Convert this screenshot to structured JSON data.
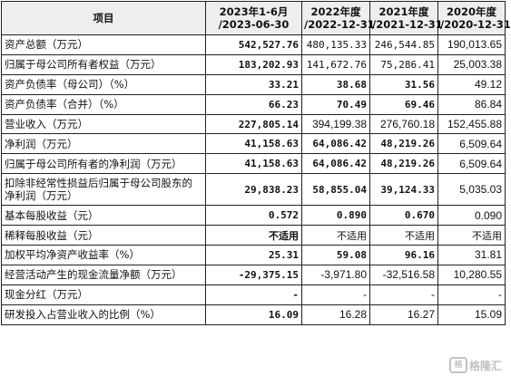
{
  "header": {
    "item": "项目",
    "col1": [
      "2023年1-6月",
      "/2023-06-30"
    ],
    "col2": [
      "2022年度",
      "/2022-12-31"
    ],
    "col3": [
      "2021年度",
      "/2021-12-31"
    ],
    "col4": [
      "2020年度",
      "/2020-12-31"
    ]
  },
  "rows": [
    {
      "label": "资产总额（万元）",
      "v": [
        "542,527.76",
        "480,135.33",
        "246,544.85",
        "190,013.65"
      ]
    },
    {
      "label": "归属于母公司所有者权益（万元）",
      "v": [
        "183,202.93",
        "141,672.76",
        "75,286.41",
        "25,003.38"
      ]
    },
    {
      "label": "资产负债率（母公司）（%）",
      "v": [
        "33.21",
        "38.68",
        "31.56",
        "49.12"
      ]
    },
    {
      "label": "资产负债率（合并）（%）",
      "v": [
        "66.23",
        "70.49",
        "69.46",
        "86.84"
      ]
    },
    {
      "label": "营业收入（万元）",
      "v": [
        "227,805.14",
        "394,199.38",
        "276,760.18",
        "152,455.88"
      ]
    },
    {
      "label": "净利润（万元）",
      "v": [
        "41,158.63",
        "64,086.42",
        "48,219.26",
        "6,509.64"
      ]
    },
    {
      "label": "归属于母公司所有者的净利润（万元）",
      "v": [
        "41,158.63",
        "64,086.42",
        "48,219.26",
        "6,509.64"
      ]
    },
    {
      "label": "扣除非经常性损益后归属于母公司股东的净利润（万元）",
      "v": [
        "29,838.23",
        "58,855.04",
        "39,124.33",
        "5,035.03"
      ]
    },
    {
      "label": "基本每股收益（元）",
      "v": [
        "0.572",
        "0.890",
        "0.670",
        "0.090"
      ]
    },
    {
      "label": "稀释每股收益（元）",
      "v": [
        "不适用",
        "不适用",
        "不适用",
        "不适用"
      ]
    },
    {
      "label": "加权平均净资产收益率（%）",
      "v": [
        "25.31",
        "59.08",
        "96.16",
        "31.81"
      ]
    },
    {
      "label": "经营活动产生的现金流量净额（万元）",
      "v": [
        "-29,375.15",
        "-3,971.80",
        "-32,516.58",
        "10,280.55"
      ]
    },
    {
      "label": "现金分红（万元）",
      "v": [
        "-",
        "-",
        "-",
        "-"
      ]
    },
    {
      "label": "研发投入占营业收入的比例（%）",
      "v": [
        "16.09",
        "16.28",
        "16.27",
        "15.09"
      ]
    }
  ],
  "watermark": {
    "logo_text": "格",
    "text": "格隆汇"
  }
}
